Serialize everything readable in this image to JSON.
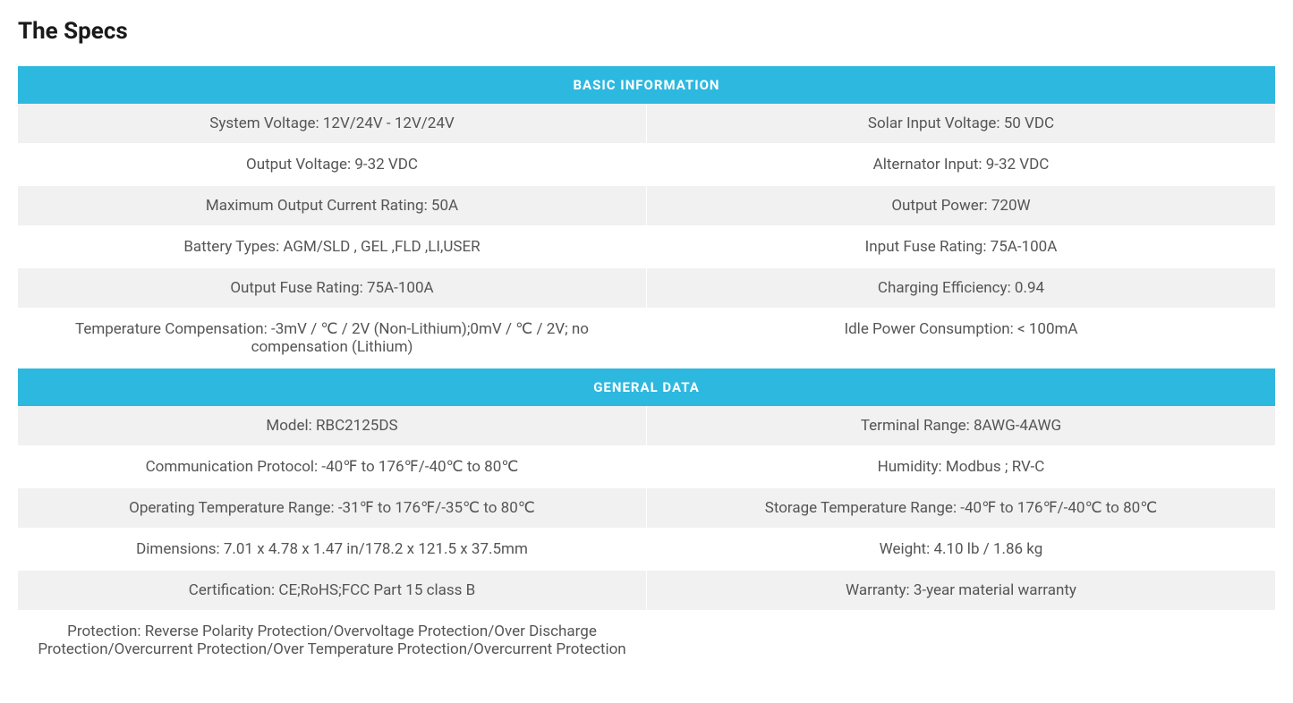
{
  "title": "The Specs",
  "colors": {
    "header_bg": "#2db8e0",
    "header_text": "#ffffff",
    "row_bg_odd": "#f1f1f1",
    "row_bg_even": "#ffffff",
    "text": "#555555",
    "title_text": "#1a1a1a"
  },
  "typography": {
    "title_fontsize": 26,
    "header_fontsize": 15,
    "cell_fontsize": 17
  },
  "sections": [
    {
      "header": "BASIC INFORMATION",
      "rows": [
        {
          "left": "System Voltage: 12V/24V - 12V/24V",
          "right": "Solar Input Voltage: 50 VDC"
        },
        {
          "left": "Output Voltage: 9-32 VDC",
          "right": "Alternator Input: 9-32 VDC"
        },
        {
          "left": "Maximum Output Current Rating: 50A",
          "right": "Output Power: 720W"
        },
        {
          "left": "Battery Types: AGM/SLD , GEL ,FLD ,LI,USER",
          "right": "Input Fuse Rating: 75A-100A"
        },
        {
          "left": "Output Fuse Rating: 75A-100A",
          "right": "Charging Efficiency: 0.94"
        },
        {
          "left": "Temperature Compensation: -3mV / ℃ / 2V (Non-Lithium);0mV / ℃ / 2V; no compensation (Lithium)",
          "right": "Idle Power Consumption:  < 100mA"
        }
      ]
    },
    {
      "header": "GENERAL DATA",
      "rows": [
        {
          "left": "Model: RBC2125DS",
          "right": "Terminal Range: 8AWG-4AWG"
        },
        {
          "left": "Communication Protocol: -40℉ to 176℉/-40℃ to 80℃",
          "right": "Humidity: Modbus ; RV-C"
        },
        {
          "left": "Operating Temperature Range: -31℉ to 176℉/-35℃ to 80℃",
          "right": "Storage Temperature Range: -40℉ to 176℉/-40℃ to 80℃"
        },
        {
          "left": "Dimensions: 7.01 x 4.78 x 1.47 in/178.2 x 121.5 x 37.5mm",
          "right": "Weight: 4.10 lb / 1.86 kg"
        },
        {
          "left": "Certification: CE;RoHS;FCC Part 15 class B",
          "right": "Warranty: 3-year material warranty"
        },
        {
          "left": "Protection: Reverse Polarity Protection/Overvoltage Protection/Over Discharge Protection/Overcurrent Protection/Over Temperature Protection/Overcurrent Protection",
          "right": ""
        }
      ]
    }
  ]
}
